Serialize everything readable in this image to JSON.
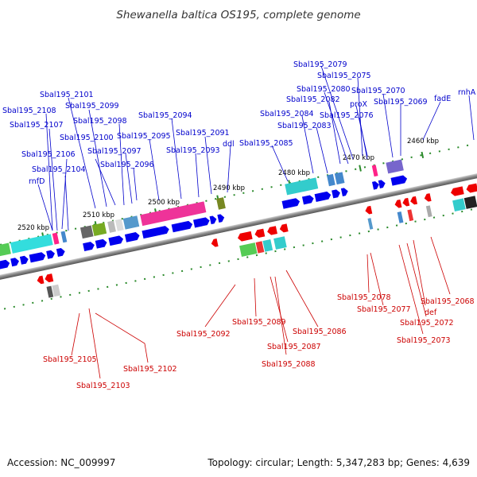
{
  "title": "Shewanella baltica OS195, complete genome",
  "footer": {
    "accession": "Accession: NC_009997",
    "summary": "Topology: circular; Length: 5,347,283 bp; Genes: 4,639"
  },
  "ticks": [
    "2520 kbp",
    "2510 kbp",
    "2500 kbp",
    "2490 kbp",
    "2480 kbp",
    "2470 kbp",
    "2460 kbp"
  ],
  "forward_genes": [
    "Sbal195_2108",
    "Sbal195_2107",
    "Sbal195_2106",
    "rnfD",
    "Sbal195_2104",
    "Sbal195_2101",
    "Sbal195_2099",
    "Sbal195_2100",
    "Sbal195_2098",
    "Sbal195_2097",
    "Sbal195_2096",
    "Sbal195_2095",
    "Sbal195_2094",
    "Sbal195_2093",
    "Sbal195_2091",
    "ddl",
    "Sbal195_2085",
    "Sbal195_2084",
    "Sbal195_2083",
    "Sbal195_2082",
    "Sbal195_2080",
    "Sbal195_2079",
    "Sbal195_2075",
    "Sbal195_2076",
    "proX",
    "Sbal195_2070",
    "Sbal195_2069",
    "fadE",
    "rnhA"
  ],
  "reverse_genes": [
    "Sbal195_2105",
    "Sbal195_2103",
    "Sbal195_2102",
    "Sbal195_2092",
    "Sbal195_2089",
    "Sbal195_2087",
    "Sbal195_2088",
    "Sbal195_2086",
    "Sbal195_2078",
    "Sbal195_2077",
    "Sbal195_2073",
    "Sbal195_2072",
    "def",
    "Sbal195_2068"
  ],
  "colors": {
    "forward_arrow": "#0000ee",
    "reverse_arrow": "#ee0000",
    "backbone": "#888888",
    "tick_mark": "#228822"
  }
}
